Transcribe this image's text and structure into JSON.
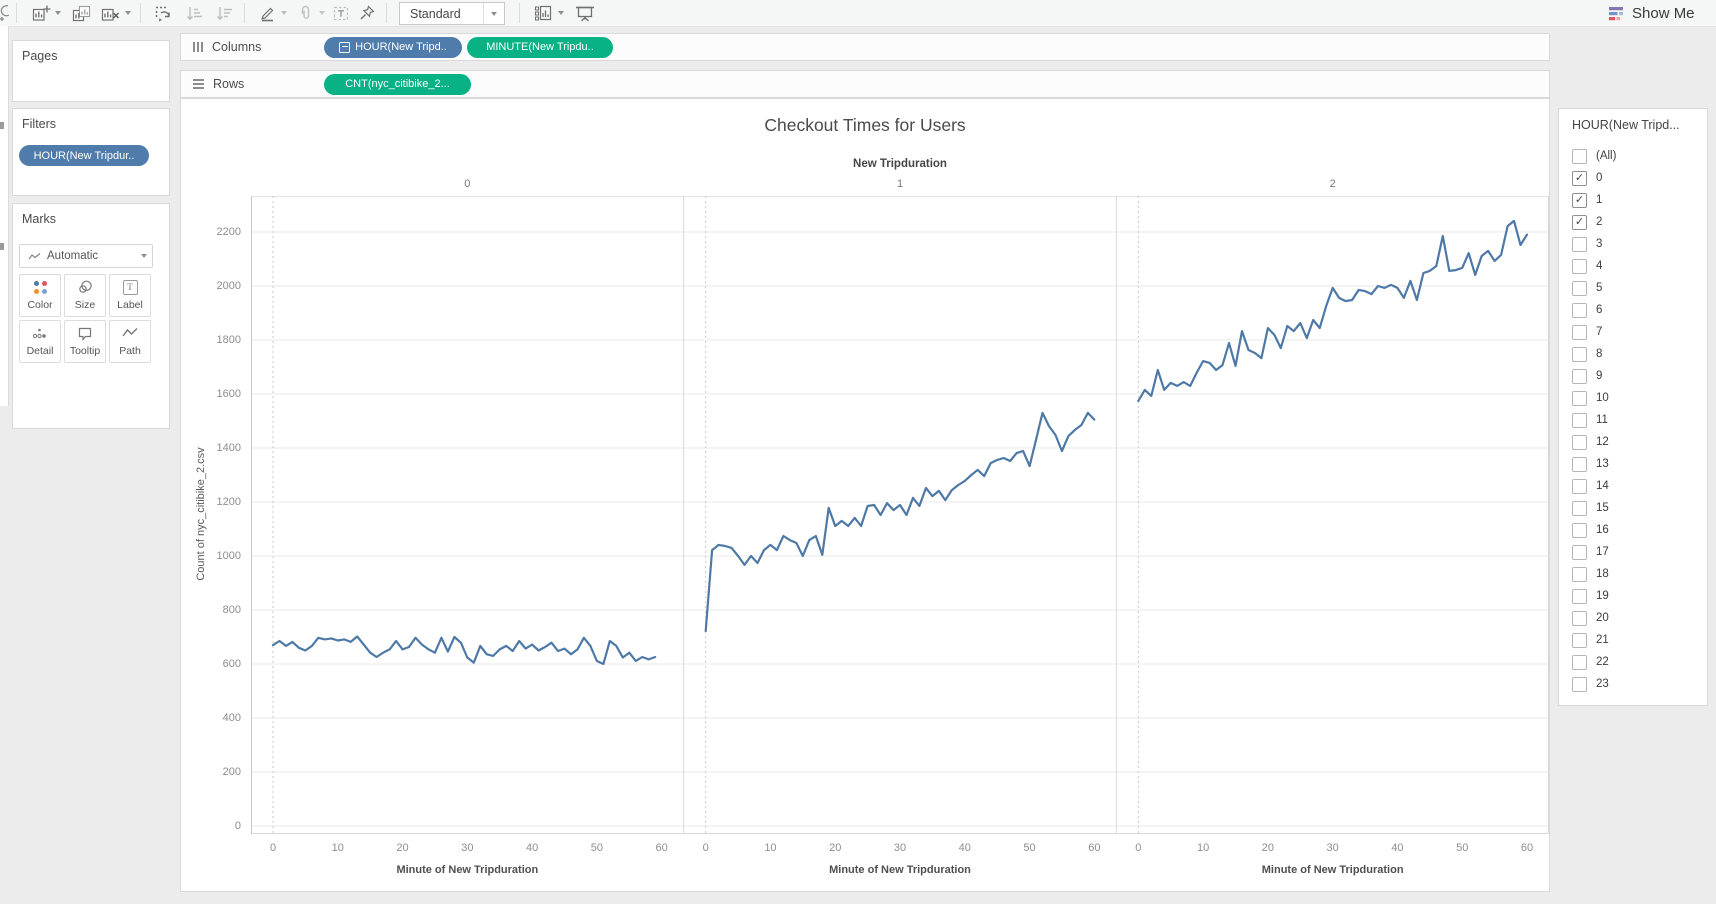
{
  "toolbar": {
    "view_mode": "Standard",
    "show_me_label": "Show Me"
  },
  "glyphs": {
    "check": "✓",
    "label_T": "T"
  },
  "left_panel": {
    "pages": {
      "title": "Pages"
    },
    "filters": {
      "title": "Filters",
      "pill": "HOUR(New Tripdur.."
    },
    "marks": {
      "title": "Marks",
      "mark_type": "Automatic",
      "buttons": [
        {
          "label": "Color"
        },
        {
          "label": "Size"
        },
        {
          "label": "Label"
        },
        {
          "label": "Detail"
        },
        {
          "label": "Tooltip"
        },
        {
          "label": "Path"
        }
      ]
    }
  },
  "shelves": {
    "columns_label": "Columns",
    "rows_label": "Rows",
    "columns_pills": [
      {
        "text": "HOUR(New Tripd..",
        "kind": "dimension"
      },
      {
        "text": "MINUTE(New Tripdu..",
        "kind": "measure"
      }
    ],
    "rows_pills": [
      {
        "text": "CNT(nyc_citibike_2...",
        "kind": "measure"
      }
    ]
  },
  "filter_panel": {
    "title": "HOUR(New Tripd...",
    "items": [
      {
        "label": "(All)",
        "checked": false
      },
      {
        "label": "0",
        "checked": true
      },
      {
        "label": "1",
        "checked": true
      },
      {
        "label": "2",
        "checked": true
      },
      {
        "label": "3",
        "checked": false
      },
      {
        "label": "4",
        "checked": false
      },
      {
        "label": "5",
        "checked": false
      },
      {
        "label": "6",
        "checked": false
      },
      {
        "label": "7",
        "checked": false
      },
      {
        "label": "8",
        "checked": false
      },
      {
        "label": "9",
        "checked": false
      },
      {
        "label": "10",
        "checked": false
      },
      {
        "label": "11",
        "checked": false
      },
      {
        "label": "12",
        "checked": false
      },
      {
        "label": "13",
        "checked": false
      },
      {
        "label": "14",
        "checked": false
      },
      {
        "label": "15",
        "checked": false
      },
      {
        "label": "16",
        "checked": false
      },
      {
        "label": "17",
        "checked": false
      },
      {
        "label": "18",
        "checked": false
      },
      {
        "label": "19",
        "checked": false
      },
      {
        "label": "20",
        "checked": false
      },
      {
        "label": "21",
        "checked": false
      },
      {
        "label": "22",
        "checked": false
      },
      {
        "label": "23",
        "checked": false
      }
    ]
  },
  "chart_data": {
    "type": "line",
    "title": "Checkout Times for Users",
    "column_field": "New Tripduration",
    "panels": [
      "0",
      "1",
      "2"
    ],
    "xlabel": "Minute of New Tripduration",
    "ylabel": "Count of nyc_citibike_2.csv",
    "x_ticks": [
      0,
      10,
      20,
      30,
      40,
      50,
      60
    ],
    "y_ticks": [
      0,
      200,
      400,
      600,
      800,
      1000,
      1200,
      1400,
      1600,
      1800,
      2000,
      2200
    ],
    "xlim": [
      0,
      60
    ],
    "ylim": [
      0,
      2330
    ],
    "grid": true,
    "line_color": "#4e79a7",
    "series": [
      {
        "name": "0",
        "values": [
          670,
          685,
          667,
          682,
          660,
          650,
          667,
          697,
          691,
          695,
          687,
          691,
          682,
          702,
          672,
          642,
          626,
          642,
          654,
          685,
          654,
          663,
          697,
          672,
          654,
          642,
          697,
          646,
          700,
          679,
          624,
          605,
          667,
          636,
          630,
          654,
          667,
          648,
          685,
          657,
          672,
          650,
          663,
          679,
          648,
          657,
          636,
          654,
          697,
          667,
          611,
          600,
          685,
          667,
          624,
          642,
          611,
          626,
          617,
          626
        ]
      },
      {
        "name": "1",
        "values": [
          722,
          1022,
          1041,
          1037,
          1030,
          1000,
          967,
          1000,
          974,
          1022,
          1041,
          1022,
          1074,
          1059,
          1048,
          1000,
          1059,
          1074,
          1004,
          1178,
          1111,
          1130,
          1111,
          1141,
          1111,
          1185,
          1189,
          1152,
          1196,
          1170,
          1189,
          1152,
          1215,
          1185,
          1252,
          1222,
          1241,
          1207,
          1244,
          1263,
          1278,
          1300,
          1319,
          1296,
          1344,
          1356,
          1363,
          1352,
          1381,
          1389,
          1333,
          1430,
          1530,
          1481,
          1448,
          1389,
          1444,
          1467,
          1485,
          1530,
          1505
        ]
      },
      {
        "name": "2",
        "values": [
          1574,
          1615,
          1593,
          1689,
          1615,
          1641,
          1630,
          1644,
          1630,
          1678,
          1722,
          1715,
          1689,
          1707,
          1789,
          1704,
          1833,
          1763,
          1752,
          1733,
          1844,
          1819,
          1770,
          1852,
          1833,
          1863,
          1807,
          1874,
          1844,
          1926,
          1993,
          1956,
          1944,
          1948,
          1985,
          1981,
          1970,
          2000,
          1993,
          2004,
          1993,
          1956,
          2019,
          1948,
          2048,
          2056,
          2074,
          2185,
          2056,
          2059,
          2067,
          2122,
          2041,
          2111,
          2130,
          2093,
          2115,
          2222,
          2241,
          2152,
          2190
        ]
      }
    ]
  }
}
